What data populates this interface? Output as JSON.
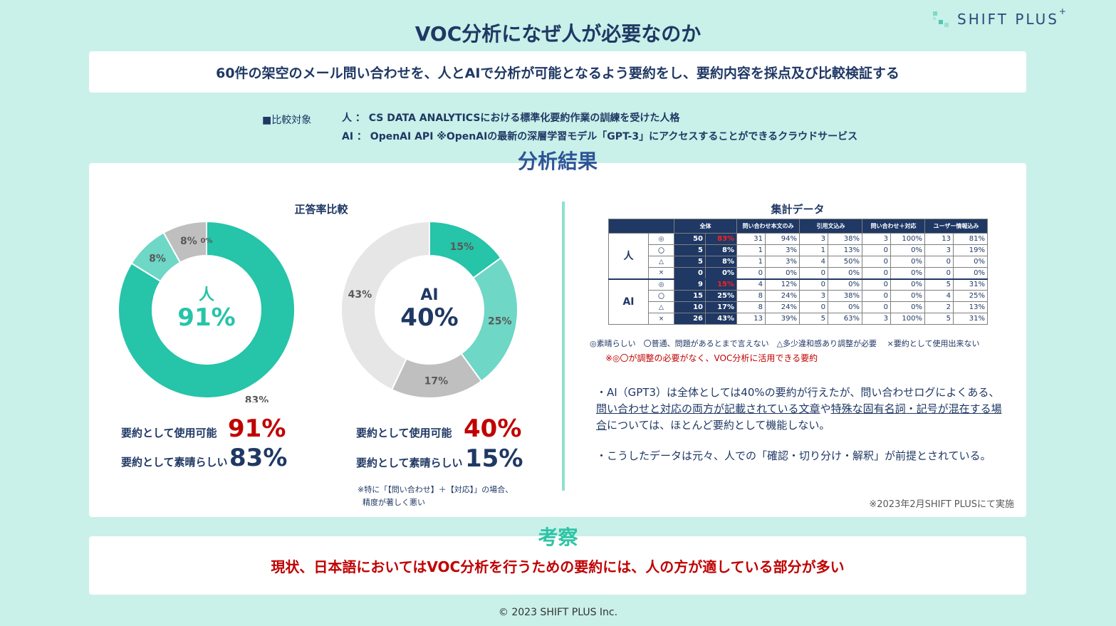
{
  "header": {
    "title": "VOC分析になぜ人が必要なのか",
    "logo_text": "SHIFT PLUS",
    "logo_sup": "+",
    "subtitle": "60件の架空のメール問い合わせを、人とAIで分析が可能となるよう要約をし、要約内容を採点及び比較検証する"
  },
  "comparison": {
    "label": "■比較対象",
    "human_line": "人 ： CS DATA ANALYTICSにおける標準化要約作業の訓練を受けた人格",
    "ai_line": "AI ： OpenAI API ※OpenAIの最新の深層学習モデル「GPT-3」にアクセスすることができるクラウドサービス"
  },
  "results_title": "分析結果",
  "chart_data": [
    {
      "type": "pie",
      "title": "正答率比較",
      "center_label": "人",
      "center_value": "91%",
      "slices": [
        {
          "label": "83%",
          "value": 83,
          "color": "#26c4a8"
        },
        {
          "label": "8%",
          "value": 8,
          "color": "#6ed7c6"
        },
        {
          "label": "8%",
          "value": 8,
          "color": "#bfbfbf"
        },
        {
          "label": "0%",
          "value": 0,
          "color": "#e0e0e0"
        }
      ]
    },
    {
      "type": "pie",
      "title": "",
      "center_label": "AI",
      "center_value": "40%",
      "slices": [
        {
          "label": "15%",
          "value": 15,
          "color": "#26c4a8"
        },
        {
          "label": "25%",
          "value": 25,
          "color": "#6ed7c6"
        },
        {
          "label": "17%",
          "value": 17,
          "color": "#bfbfbf"
        },
        {
          "label": "43%",
          "value": 43,
          "color": "#e6e6e6"
        }
      ]
    },
    {
      "type": "table",
      "title": "集計データ",
      "columns": [
        "全体",
        "問い合わせ本文のみ",
        "引用文込み",
        "問い合わせ＋対応",
        "ユーザー情報込み"
      ],
      "groups": [
        {
          "name": "人",
          "rows": [
            {
              "mark": "◎",
              "cells": [
                [
                  "50",
                  "83%"
                ],
                [
                  "31",
                  "94%"
                ],
                [
                  "3",
                  "38%"
                ],
                [
                  "3",
                  "100%"
                ],
                [
                  "13",
                  "81%"
                ]
              ],
              "highlight": true
            },
            {
              "mark": "〇",
              "cells": [
                [
                  "5",
                  "8%"
                ],
                [
                  "1",
                  "3%"
                ],
                [
                  "1",
                  "13%"
                ],
                [
                  "0",
                  "0%"
                ],
                [
                  "3",
                  "19%"
                ]
              ]
            },
            {
              "mark": "△",
              "cells": [
                [
                  "5",
                  "8%"
                ],
                [
                  "1",
                  "3%"
                ],
                [
                  "4",
                  "50%"
                ],
                [
                  "0",
                  "0%"
                ],
                [
                  "0",
                  "0%"
                ]
              ]
            },
            {
              "mark": "×",
              "cells": [
                [
                  "0",
                  "0%"
                ],
                [
                  "0",
                  "0%"
                ],
                [
                  "0",
                  "0%"
                ],
                [
                  "0",
                  "0%"
                ],
                [
                  "0",
                  "0%"
                ]
              ]
            }
          ]
        },
        {
          "name": "AI",
          "rows": [
            {
              "mark": "◎",
              "cells": [
                [
                  "9",
                  "15%"
                ],
                [
                  "4",
                  "12%"
                ],
                [
                  "0",
                  "0%"
                ],
                [
                  "0",
                  "0%"
                ],
                [
                  "5",
                  "31%"
                ]
              ],
              "highlight": true
            },
            {
              "mark": "〇",
              "cells": [
                [
                  "15",
                  "25%"
                ],
                [
                  "8",
                  "24%"
                ],
                [
                  "3",
                  "38%"
                ],
                [
                  "0",
                  "0%"
                ],
                [
                  "4",
                  "25%"
                ]
              ]
            },
            {
              "mark": "△",
              "cells": [
                [
                  "10",
                  "17%"
                ],
                [
                  "8",
                  "24%"
                ],
                [
                  "0",
                  "0%"
                ],
                [
                  "0",
                  "0%"
                ],
                [
                  "2",
                  "13%"
                ]
              ]
            },
            {
              "mark": "×",
              "cells": [
                [
                  "26",
                  "43%"
                ],
                [
                  "13",
                  "39%"
                ],
                [
                  "5",
                  "63%"
                ],
                [
                  "3",
                  "100%"
                ],
                [
                  "5",
                  "31%"
                ]
              ]
            }
          ]
        }
      ]
    }
  ],
  "stats": {
    "human": {
      "usable_label": "要約として使用可能",
      "usable_value": "91%",
      "excellent_label": "要約として素晴らしい",
      "excellent_value": "83%"
    },
    "ai": {
      "usable_label": "要約として使用可能",
      "usable_value": "40%",
      "excellent_label": "要約として素晴らしい",
      "excellent_value": "15%"
    },
    "ai_note_1": "※特に「【問い合わせ】＋【対応】」の場合、",
    "ai_note_2": "精度が著しく悪い"
  },
  "legend": {
    "text": "◎素晴らしい　〇普通、問題があるとまで言えない　△多少違和感あり調整が必要　 ×要約として使用出来ない",
    "red_note": "※◎〇が調整の必要がなく、VOC分析に活用できる要約"
  },
  "bullets": {
    "b1_a": "・AI（GPT3）は全体としては40%の要約が行えたが、問い合わせログによくある、",
    "b1_u1": "問い合わせと対応の両方が記載されている文章",
    "b1_b": "や",
    "b1_u2": "特殊な固有名詞・記号が混在する場合",
    "b1_c": "については、ほとんど要約として機能しない。",
    "b2": "・こうしたデータは元々、人での「確認・切り分け・解釈」が前提とされている。"
  },
  "footnote": "※2023年2月SHIFT PLUSにて実施",
  "conclusion": {
    "title": "考察",
    "text": "現状、日本語においてはVOC分析を行うための要約には、人の方が適している部分が多い"
  },
  "copyright": "© 2023 SHIFT PLUS Inc."
}
